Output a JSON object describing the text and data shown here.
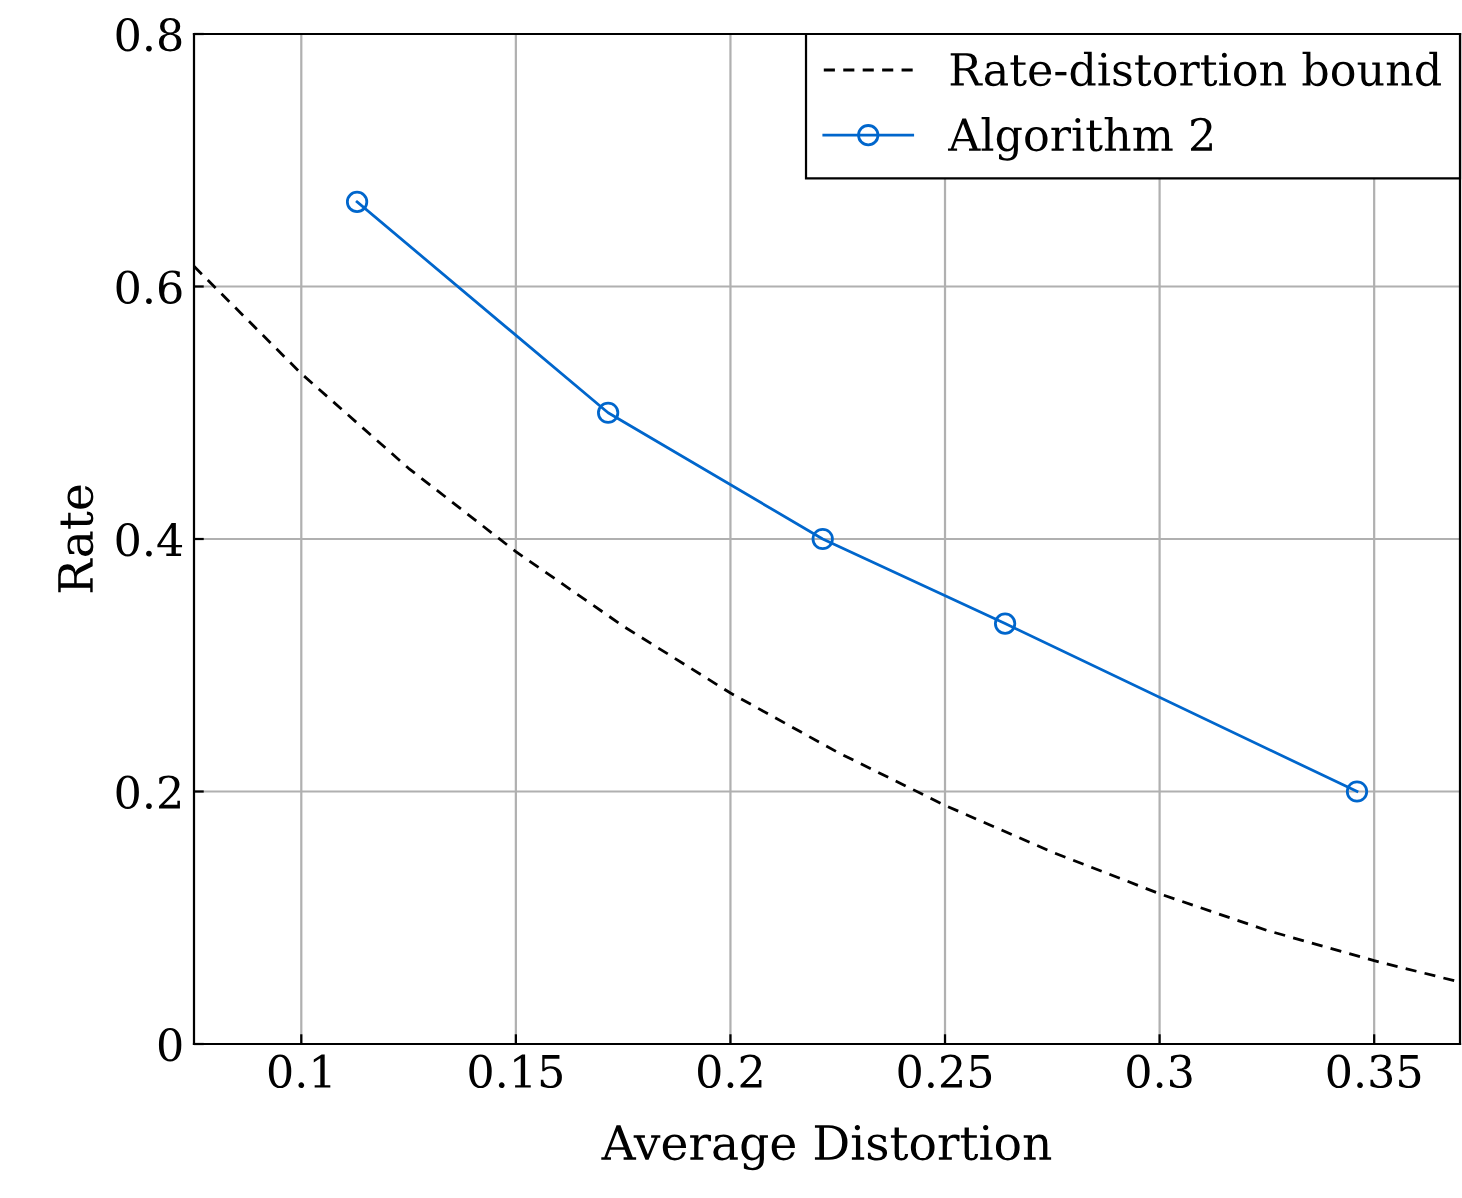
{
  "chart_data": {
    "type": "line",
    "xlabel": "Average Distortion",
    "ylabel": "Rate",
    "xlim": [
      0.075,
      0.37
    ],
    "ylim": [
      0,
      0.8
    ],
    "xticks": [
      0.1,
      0.15,
      0.2,
      0.25,
      0.3,
      0.35
    ],
    "yticks": [
      0,
      0.2,
      0.4,
      0.6,
      0.8
    ],
    "grid": true,
    "legend": "top right",
    "series": [
      {
        "name": "Rate-distortion bound",
        "color": "#000000",
        "line_style": "dashed",
        "marker": "none",
        "x": [
          0.075,
          0.1,
          0.125,
          0.15,
          0.175,
          0.2,
          0.225,
          0.25,
          0.275,
          0.3,
          0.325,
          0.35,
          0.37
        ],
        "values": [
          0.616,
          0.531,
          0.456,
          0.39,
          0.331,
          0.278,
          0.231,
          0.189,
          0.152,
          0.119,
          0.09,
          0.066,
          0.049
        ]
      },
      {
        "name": "Algorithm 2",
        "color": "#0066cc",
        "line_style": "solid",
        "marker": "circle",
        "x": [
          0.113,
          0.1715,
          0.2215,
          0.264,
          0.346
        ],
        "values": [
          0.667,
          0.5,
          0.4,
          0.333,
          0.2
        ]
      }
    ]
  }
}
